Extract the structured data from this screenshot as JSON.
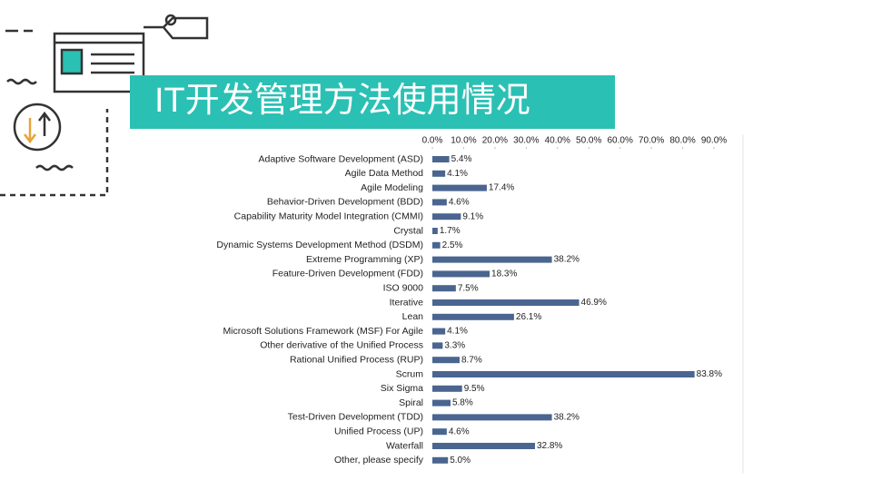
{
  "chart_data": {
    "type": "bar",
    "orientation": "horizontal",
    "title": "IT开发管理方法使用情况",
    "categories": [
      "Adaptive Software Development (ASD)",
      "Agile Data Method",
      "Agile Modeling",
      "Behavior-Driven Development (BDD)",
      "Capability Maturity Model Integration (CMMI)",
      "Crystal",
      "Dynamic Systems Development Method (DSDM)",
      "Extreme Programming (XP)",
      "Feature-Driven Development (FDD)",
      "ISO 9000",
      "Iterative",
      "Lean",
      "Microsoft Solutions Framework (MSF) For Agile",
      "Other derivative of the Unified Process",
      "Rational Unified Process (RUP)",
      "Scrum",
      "Six Sigma",
      "Spiral",
      "Test-Driven Development (TDD)",
      "Unified Process (UP)",
      "Waterfall",
      "Other, please specify"
    ],
    "values": [
      5.4,
      4.1,
      17.4,
      4.6,
      9.1,
      1.7,
      2.5,
      38.2,
      18.3,
      7.5,
      46.9,
      26.1,
      4.1,
      3.3,
      8.7,
      83.8,
      9.5,
      5.8,
      38.2,
      4.6,
      32.8,
      5.0
    ],
    "value_labels": [
      "5.4%",
      "4.1%",
      "17.4%",
      "4.6%",
      "9.1%",
      "1.7%",
      "2.5%",
      "38.2%",
      "18.3%",
      "7.5%",
      "46.9%",
      "26.1%",
      "4.1%",
      "3.3%",
      "8.7%",
      "83.8%",
      "9.5%",
      "5.8%",
      "38.2%",
      "4.6%",
      "32.8%",
      "5.0%"
    ],
    "color": "#4a6590",
    "xlim": [
      0,
      90
    ],
    "xticks": [
      {
        "value": 0,
        "label": "0.0%"
      },
      {
        "value": 10,
        "label": "10.0%"
      },
      {
        "value": 20,
        "label": "20.0%"
      },
      {
        "value": 30,
        "label": "30.0%"
      },
      {
        "value": 40,
        "label": "40.0%"
      },
      {
        "value": 50,
        "label": "50.0%"
      },
      {
        "value": 60,
        "label": "60.0%"
      },
      {
        "value": 70,
        "label": "70.0%"
      },
      {
        "value": 80,
        "label": "80.0%"
      },
      {
        "value": 90,
        "label": "90.0%"
      }
    ]
  }
}
